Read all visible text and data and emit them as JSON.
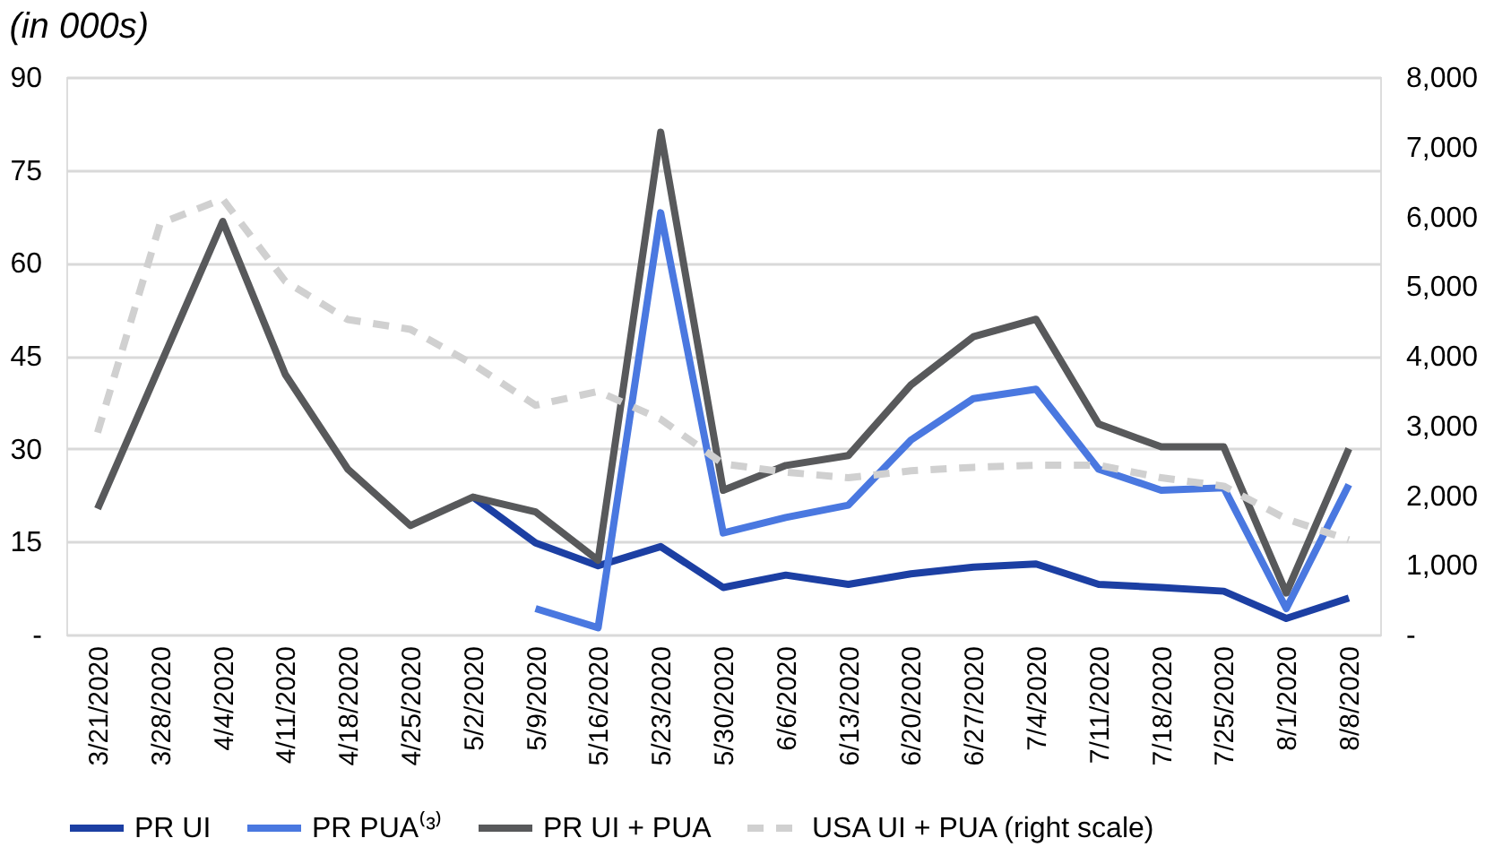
{
  "chart_data": {
    "type": "line",
    "title": "(in 000s)",
    "categories": [
      "3/21/2020",
      "3/28/2020",
      "4/4/2020",
      "4/11/2020",
      "4/18/2020",
      "4/25/2020",
      "5/2/2020",
      "5/9/2020",
      "5/16/2020",
      "5/23/2020",
      "5/30/2020",
      "6/6/2020",
      "6/13/2020",
      "6/20/2020",
      "6/27/2020",
      "7/4/2020",
      "7/11/2020",
      "7/18/2020",
      "7/25/2020",
      "8/1/2020",
      "8/8/2020"
    ],
    "series": [
      {
        "name": "PR UI",
        "color": "#1c3fa3",
        "line_style": "solid",
        "values": [
          null,
          null,
          null,
          null,
          null,
          null,
          22.2,
          14.8,
          11.1,
          14.2,
          7.6,
          9.6,
          8.1,
          9.8,
          10.9,
          11.4,
          8.1,
          7.6,
          7.0,
          2.6,
          5.9
        ]
      },
      {
        "name": "PR PUA⁽³⁾",
        "color": "#4a78e0",
        "line_style": "solid",
        "values": [
          null,
          null,
          null,
          null,
          null,
          null,
          null,
          4.2,
          1.1,
          68.1,
          16.4,
          18.9,
          20.9,
          31.4,
          38.1,
          39.6,
          26.7,
          23.3,
          23.7,
          4.2,
          24.2
        ]
      },
      {
        "name": "PR UI + PUA",
        "color": "#58595b",
        "line_style": "solid",
        "values": [
          20.3,
          43.5,
          66.7,
          42.0,
          26.7,
          17.6,
          22.2,
          19.8,
          12.0,
          81.1,
          23.3,
          27.3,
          28.9,
          40.3,
          48.1,
          50.9,
          34.0,
          30.3,
          30.3,
          6.7,
          30.0
        ]
      },
      {
        "name": "USA UI + PUA (right scale)",
        "color": "#d0d0d0",
        "line_style": "dashed",
        "axis": "y2",
        "values": [
          2900,
          5900,
          6250,
          5070,
          4520,
          4380,
          3880,
          3290,
          3490,
          3090,
          2450,
          2330,
          2250,
          2350,
          2400,
          2430,
          2430,
          2250,
          2130,
          1660,
          1360
        ]
      }
    ],
    "ylim": [
      0,
      90
    ],
    "yticks": [
      {
        "value": 0,
        "label": "-"
      },
      15,
      30,
      45,
      60,
      75,
      90
    ],
    "y2lim": [
      0,
      8000
    ],
    "y2ticks": [
      {
        "value": 0,
        "label": "-"
      },
      {
        "value": 1000,
        "label": "1,000"
      },
      {
        "value": 2000,
        "label": "2,000"
      },
      {
        "value": 3000,
        "label": "3,000"
      },
      {
        "value": 4000,
        "label": "4,000"
      },
      {
        "value": 5000,
        "label": "5,000"
      },
      {
        "value": 6000,
        "label": "6,000"
      },
      {
        "value": 7000,
        "label": "7,000"
      },
      {
        "value": 8000,
        "label": "8,000"
      }
    ],
    "grid": "y",
    "legend": "bottom"
  }
}
